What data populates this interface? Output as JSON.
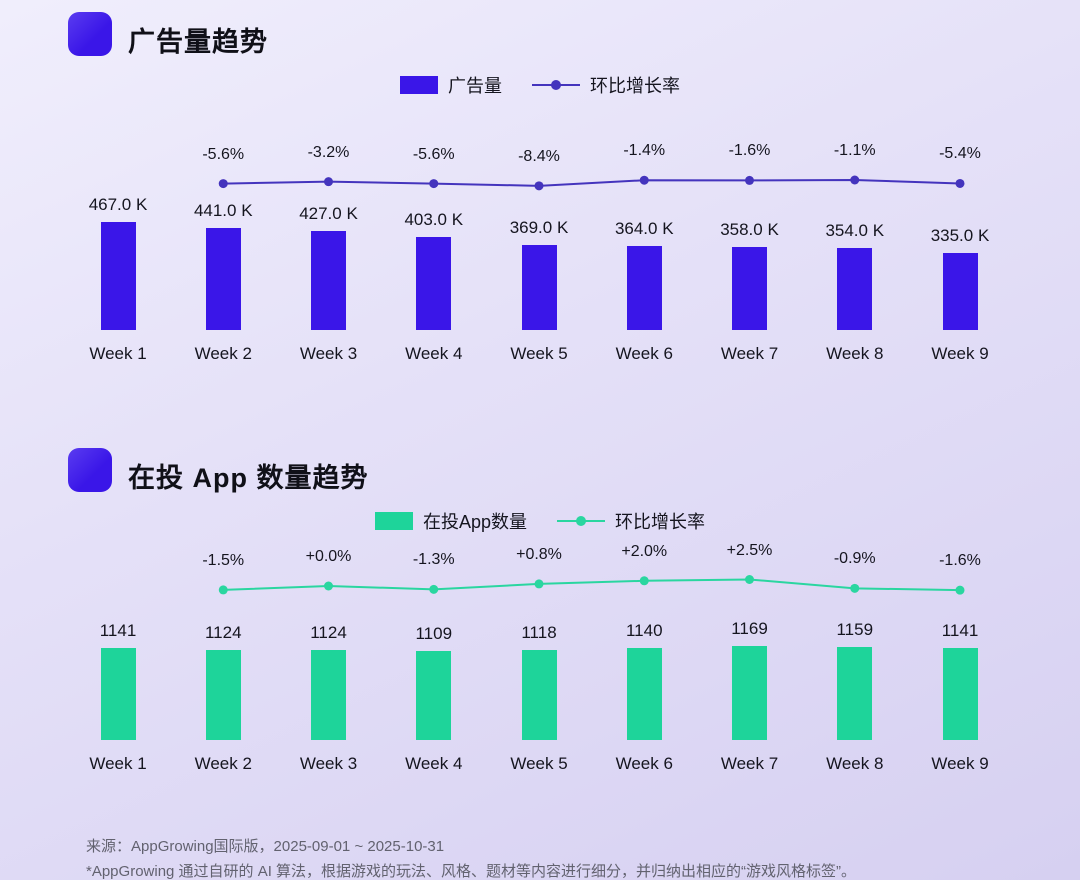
{
  "chart_data": [
    {
      "type": "bar",
      "title": "广告量趋势",
      "legend": {
        "bar": "广告量",
        "line": "环比增长率"
      },
      "categories": [
        "Week 1",
        "Week 2",
        "Week 3",
        "Week 4",
        "Week 5",
        "Week 6",
        "Week 7",
        "Week 8",
        "Week 9"
      ],
      "series": [
        {
          "name": "广告量",
          "type": "bar",
          "unit": "K",
          "values": [
            467.0,
            441.0,
            427.0,
            403.0,
            369.0,
            364.0,
            358.0,
            354.0,
            335.0
          ],
          "labels": [
            "467.0 K",
            "441.0 K",
            "427.0 K",
            "403.0 K",
            "369.0 K",
            "364.0 K",
            "358.0 K",
            "354.0 K",
            "335.0 K"
          ]
        },
        {
          "name": "环比增长率",
          "type": "line",
          "values": [
            null,
            -5.6,
            -3.2,
            -5.6,
            -8.4,
            -1.4,
            -1.6,
            -1.1,
            -5.4
          ],
          "labels": [
            "-5.6%",
            "-3.2%",
            "-5.6%",
            "-8.4%",
            "-1.4%",
            "-1.6%",
            "-1.1%",
            "-5.4%"
          ]
        }
      ],
      "colors": {
        "bar": "#3a16e8",
        "line": "#4434bd"
      },
      "ylim": [
        0,
        467
      ],
      "grid": false,
      "legend_position": "top-center"
    },
    {
      "type": "bar",
      "title": "在投 App 数量趋势",
      "legend": {
        "bar": "在投App数量",
        "line": "环比增长率"
      },
      "categories": [
        "Week 1",
        "Week 2",
        "Week 3",
        "Week 4",
        "Week 5",
        "Week 6",
        "Week 7",
        "Week 8",
        "Week 9"
      ],
      "series": [
        {
          "name": "在投App数量",
          "type": "bar",
          "unit": "",
          "values": [
            1141,
            1124,
            1124,
            1109,
            1118,
            1140,
            1169,
            1159,
            1141
          ],
          "labels": [
            "1141",
            "1124",
            "1124",
            "1109",
            "1118",
            "1140",
            "1169",
            "1159",
            "1141"
          ]
        },
        {
          "name": "环比增长率",
          "type": "line",
          "values": [
            null,
            -1.5,
            0.0,
            -1.3,
            0.8,
            2.0,
            2.5,
            -0.9,
            -1.6
          ],
          "labels": [
            "-1.5%",
            "+0.0%",
            "-1.3%",
            "+0.8%",
            "+2.0%",
            "+2.5%",
            "-0.9%",
            "-1.6%"
          ]
        }
      ],
      "colors": {
        "bar": "#1ed49a",
        "line": "#2ad6a0"
      },
      "ylim": [
        0,
        1169
      ],
      "grid": false,
      "legend_position": "top-center"
    }
  ],
  "footer": {
    "line1": "来源：AppGrowing国际版，2025-09-01 ~ 2025-10-31",
    "line2": "*AppGrowing 通过自研的 AI 算法，根据游戏的玩法、风格、题材等内容进行细分，并归纳出相应的“游戏风格标签”。"
  }
}
